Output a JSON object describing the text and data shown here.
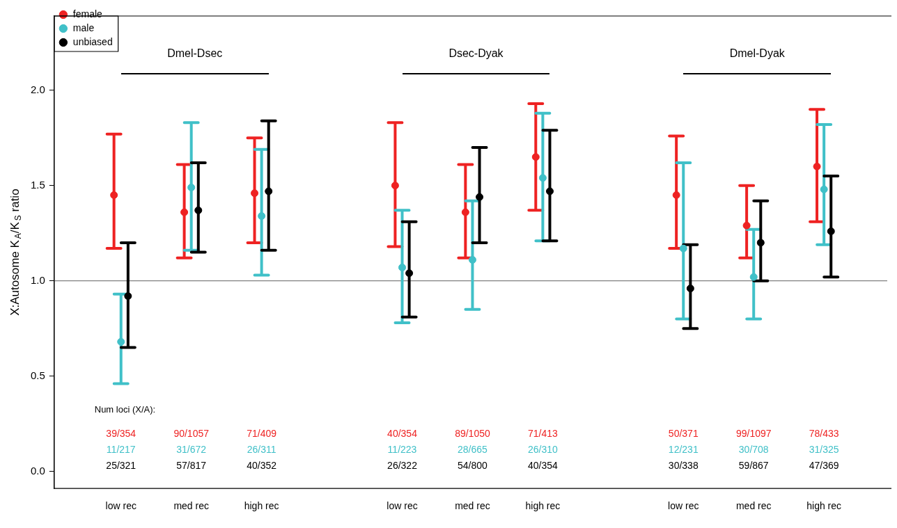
{
  "chart_data": {
    "type": "scatter",
    "ylabel": "X:Autosome K$_{A}$/K$_{S}$ ratio",
    "categories": [
      "low rec",
      "med rec",
      "high rec",
      null,
      "low rec",
      "med rec",
      "high rec",
      null,
      "low rec",
      "med rec",
      "high rec"
    ],
    "series": [
      {
        "name": "female",
        "color": "#ee2222",
        "values": [
          1.45,
          1.36,
          1.46,
          null,
          1.5,
          1.36,
          1.65,
          null,
          1.45,
          1.29,
          1.6
        ],
        "errors": [
          [
            1.17,
            1.77
          ],
          [
            1.12,
            1.61
          ],
          [
            1.2,
            1.75
          ],
          null,
          [
            1.18,
            1.83
          ],
          [
            1.12,
            1.61
          ],
          [
            1.37,
            1.93
          ],
          null,
          [
            1.17,
            1.76
          ],
          [
            1.12,
            1.5
          ],
          [
            1.31,
            1.9
          ]
        ]
      },
      {
        "name": "male",
        "color": "#40c0c8",
        "values": [
          0.68,
          1.49,
          1.34,
          null,
          1.07,
          1.11,
          1.54,
          null,
          1.17,
          1.02,
          1.48
        ],
        "errors": [
          [
            0.46,
            0.93
          ],
          [
            1.16,
            1.83
          ],
          [
            1.03,
            1.69
          ],
          null,
          [
            0.78,
            1.37
          ],
          [
            0.85,
            1.42
          ],
          [
            1.21,
            1.88
          ],
          null,
          [
            0.8,
            1.62
          ],
          [
            0.8,
            1.27
          ],
          [
            1.19,
            1.82
          ]
        ]
      },
      {
        "name": "unbiased",
        "color": "#000000",
        "values": [
          0.92,
          1.37,
          1.47,
          null,
          1.04,
          1.44,
          1.47,
          null,
          0.96,
          1.2,
          1.26
        ],
        "errors": [
          [
            0.65,
            1.2
          ],
          [
            1.15,
            1.62
          ],
          [
            1.16,
            1.84
          ],
          null,
          [
            0.81,
            1.31
          ],
          [
            1.2,
            1.7
          ],
          [
            1.21,
            1.79
          ],
          null,
          [
            0.75,
            1.19
          ],
          [
            1.0,
            1.42
          ],
          [
            1.02,
            1.55
          ]
        ]
      }
    ],
    "annotations": [
      "Dmel-Dsec",
      "Dsec-Dyak",
      "Dmel-Dyak",
      "Num loci (X/A):",
      "39/354",
      "90/1057",
      "71/409",
      "40/354",
      "89/1050",
      "71/413",
      "50/371",
      "99/1097",
      "78/433",
      "11/217",
      "31/672",
      "26/311",
      "11/223",
      "28/665",
      "26/310",
      "12/231",
      "30/708",
      "31/325",
      "25/321",
      "57/817",
      "40/352",
      "26/322",
      "54/800",
      "40/354",
      "30/338",
      "59/867",
      "47/369"
    ],
    "ref_lines": [
      {
        "axis": "y",
        "value": 1,
        "color": "#808080"
      }
    ],
    "ylim": [
      -0.09,
      2.39
    ],
    "yticks": [
      {
        "value": 0,
        "label": "0.0"
      },
      {
        "value": 0.5,
        "label": "0.5"
      },
      {
        "value": 1,
        "label": "1.0"
      },
      {
        "value": 1.5,
        "label": "1.5"
      },
      {
        "value": 2,
        "label": "2.0"
      }
    ],
    "grid": false,
    "legend": "top left",
    "marker": "circle"
  }
}
